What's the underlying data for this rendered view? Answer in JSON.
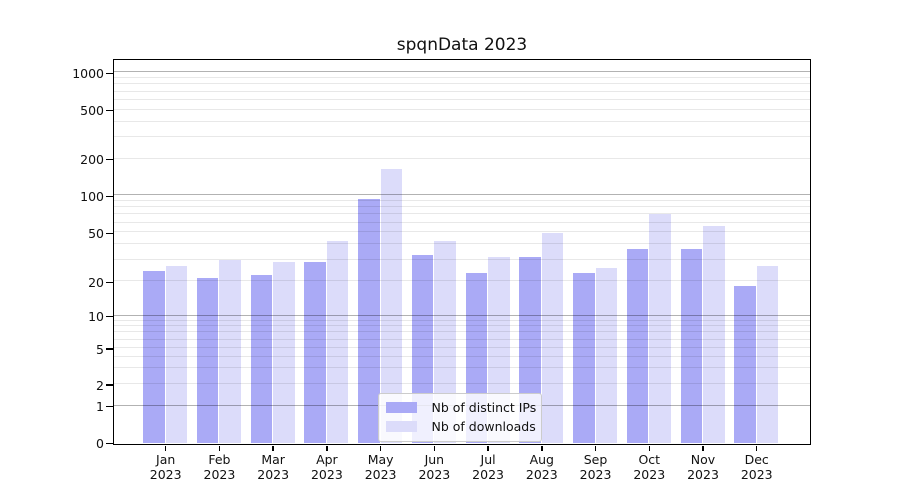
{
  "title": "spqnData 2023",
  "chart_data": {
    "type": "bar",
    "title": "spqnData 2023",
    "year": "2023",
    "months": [
      "Jan",
      "Feb",
      "Mar",
      "Apr",
      "May",
      "Jun",
      "Jul",
      "Aug",
      "Sep",
      "Oct",
      "Nov",
      "Dec"
    ],
    "categories": [
      "Jan 2023",
      "Feb 2023",
      "Mar 2023",
      "Apr 2023",
      "May 2023",
      "Jun 2023",
      "Jul 2023",
      "Aug 2023",
      "Sep 2023",
      "Oct 2023",
      "Nov 2023",
      "Dec 2023"
    ],
    "series": [
      {
        "name": "Nb of distinct IPs",
        "color": "#aaaaf6",
        "values": [
          24,
          21,
          22,
          28,
          92,
          32,
          23,
          31,
          23,
          36,
          36,
          18
        ]
      },
      {
        "name": "Nb of downloads",
        "color": "#dcdcfa",
        "values": [
          26,
          29,
          28,
          42,
          160,
          42,
          31,
          48,
          25,
          69,
          55,
          26
        ]
      }
    ],
    "yscale": "symlog",
    "yticks": [
      0,
      1,
      2,
      5,
      10,
      20,
      50,
      100,
      200,
      500,
      1000
    ],
    "ylim": [
      0,
      1100
    ],
    "grid": true,
    "legend_position": "lower center",
    "axis_color": "#000000",
    "background": "#ffffff"
  }
}
